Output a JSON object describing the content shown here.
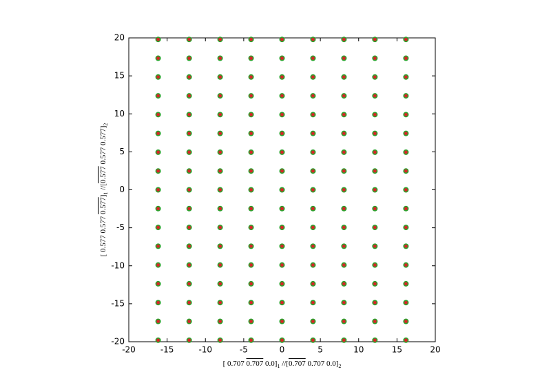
{
  "chart_data": {
    "type": "scatter",
    "xlabel": [
      {
        "text": "[ 0.707 "
      },
      {
        "text": "0.707",
        "overline": true
      },
      {
        "text": " 0.0]"
      },
      {
        "text": "1",
        "sub": true
      },
      {
        "text": " //["
      },
      {
        "text": "0.707",
        "overline": true
      },
      {
        "text": " 0.707 0.0]"
      },
      {
        "text": "2",
        "sub": true
      }
    ],
    "ylabel": [
      {
        "text": "[ 0.577 0.577 "
      },
      {
        "text": "0.577",
        "overline": true
      },
      {
        "text": "]"
      },
      {
        "text": "1",
        "sub": true
      },
      {
        "text": " //["
      },
      {
        "text": "0.577",
        "overline": true
      },
      {
        "text": " 0.577 0.577]"
      },
      {
        "text": "2",
        "sub": true
      }
    ],
    "xlim": [
      -20,
      20
    ],
    "ylim": [
      -20,
      20
    ],
    "xticks": [
      -20,
      -15,
      -10,
      -5,
      0,
      5,
      10,
      15,
      20
    ],
    "yticks": [
      -20,
      -15,
      -10,
      -5,
      0,
      5,
      10,
      15,
      20
    ],
    "series": [
      {
        "color": "#d62728",
        "edgecolor": "#2ca02c",
        "x": [
          -16.17,
          -16.17,
          -16.17,
          -16.17,
          -16.17,
          -16.17,
          -16.17,
          -16.17,
          -16.17,
          -16.17,
          -16.17,
          -16.17,
          -16.17,
          -16.17,
          -16.17,
          -16.17,
          -16.17,
          -12.12,
          -12.12,
          -12.12,
          -12.12,
          -12.12,
          -12.12,
          -12.12,
          -12.12,
          -12.12,
          -12.12,
          -12.12,
          -12.12,
          -12.12,
          -12.12,
          -12.12,
          -12.12,
          -12.12,
          -8.08,
          -8.08,
          -8.08,
          -8.08,
          -8.08,
          -8.08,
          -8.08,
          -8.08,
          -8.08,
          -8.08,
          -8.08,
          -8.08,
          -8.08,
          -8.08,
          -8.08,
          -8.08,
          -8.08,
          -4.04,
          -4.04,
          -4.04,
          -4.04,
          -4.04,
          -4.04,
          -4.04,
          -4.04,
          -4.04,
          -4.04,
          -4.04,
          -4.04,
          -4.04,
          -4.04,
          -4.04,
          -4.04,
          -4.04,
          0,
          0,
          0,
          0,
          0,
          0,
          0,
          0,
          0,
          0,
          0,
          0,
          0,
          0,
          0,
          0,
          0,
          4.04,
          4.04,
          4.04,
          4.04,
          4.04,
          4.04,
          4.04,
          4.04,
          4.04,
          4.04,
          4.04,
          4.04,
          4.04,
          4.04,
          4.04,
          4.04,
          4.04,
          8.08,
          8.08,
          8.08,
          8.08,
          8.08,
          8.08,
          8.08,
          8.08,
          8.08,
          8.08,
          8.08,
          8.08,
          8.08,
          8.08,
          8.08,
          8.08,
          8.08,
          12.12,
          12.12,
          12.12,
          12.12,
          12.12,
          12.12,
          12.12,
          12.12,
          12.12,
          12.12,
          12.12,
          12.12,
          12.12,
          12.12,
          12.12,
          12.12,
          12.12,
          16.17,
          16.17,
          16.17,
          16.17,
          16.17,
          16.17,
          16.17,
          16.17,
          16.17,
          16.17,
          16.17,
          16.17,
          16.17,
          16.17,
          16.17,
          16.17,
          16.17
        ],
        "values": [
          -19.8,
          -17.325,
          -14.85,
          -12.375,
          -9.9,
          -7.425,
          -4.95,
          -2.475,
          0,
          2.475,
          4.95,
          7.425,
          9.9,
          12.375,
          14.85,
          17.325,
          19.8,
          -19.8,
          -17.325,
          -14.85,
          -12.375,
          -9.9,
          -7.425,
          -4.95,
          -2.475,
          0,
          2.475,
          4.95,
          7.425,
          9.9,
          12.375,
          14.85,
          17.325,
          19.8,
          -19.8,
          -17.325,
          -14.85,
          -12.375,
          -9.9,
          -7.425,
          -4.95,
          -2.475,
          0,
          2.475,
          4.95,
          7.425,
          9.9,
          12.375,
          14.85,
          17.325,
          19.8,
          -19.8,
          -17.325,
          -14.85,
          -12.375,
          -9.9,
          -7.425,
          -4.95,
          -2.475,
          0,
          2.475,
          4.95,
          7.425,
          9.9,
          12.375,
          14.85,
          17.325,
          19.8,
          -19.8,
          -17.325,
          -14.85,
          -12.375,
          -9.9,
          -7.425,
          -4.95,
          -2.475,
          0,
          2.475,
          4.95,
          7.425,
          9.9,
          12.375,
          14.85,
          17.325,
          19.8,
          -19.8,
          -17.325,
          -14.85,
          -12.375,
          -9.9,
          -7.425,
          -4.95,
          -2.475,
          0,
          2.475,
          4.95,
          7.425,
          9.9,
          12.375,
          14.85,
          17.325,
          19.8,
          -19.8,
          -17.325,
          -14.85,
          -12.375,
          -9.9,
          -7.425,
          -4.95,
          -2.475,
          0,
          2.475,
          4.95,
          7.425,
          9.9,
          12.375,
          14.85,
          17.325,
          19.8,
          -19.8,
          -17.325,
          -14.85,
          -12.375,
          -9.9,
          -7.425,
          -4.95,
          -2.475,
          0,
          2.475,
          4.95,
          7.425,
          9.9,
          12.375,
          14.85,
          17.325,
          19.8,
          -19.8,
          -17.325,
          -14.85,
          -12.375,
          -9.9,
          -7.425,
          -4.95,
          -2.475,
          0,
          2.475,
          4.95,
          7.425,
          9.9,
          12.375,
          14.85,
          17.325,
          19.8
        ]
      }
    ]
  }
}
